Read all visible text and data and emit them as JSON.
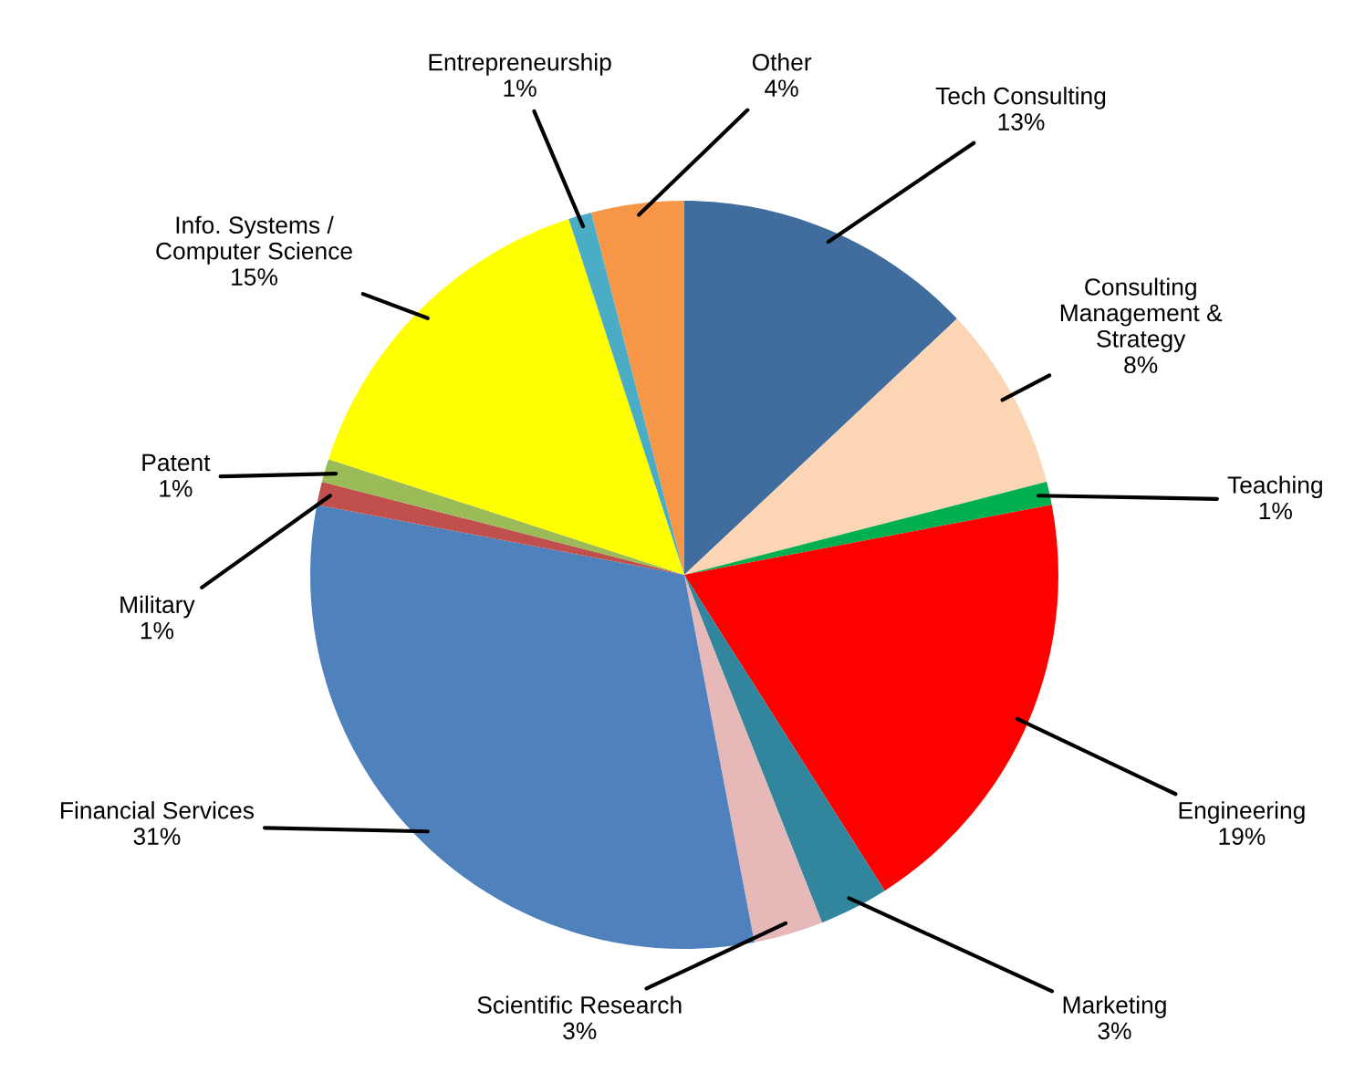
{
  "chart_data": {
    "type": "pie",
    "categories": [
      "Tech Consulting",
      "Consulting\nManagement &\nStrategy",
      "Teaching",
      "Engineering",
      "Marketing",
      "Scientific Research",
      "Financial Services",
      "Military",
      "Patent",
      "Info. Systems /\nComputer Science",
      "Entrepreneurship",
      "Other"
    ],
    "values": [
      13,
      8,
      1,
      19,
      3,
      3,
      31,
      1,
      1,
      15,
      1,
      4
    ],
    "value_labels": [
      "13%",
      "8%",
      "1%",
      "19%",
      "3%",
      "3%",
      "31%",
      "1%",
      "1%",
      "15%",
      "1%",
      "4%"
    ],
    "colors": [
      "#416c9e",
      "#fcd5b5",
      "#00b050",
      "#ff0000",
      "#31859c",
      "#e6b9b8",
      "#4f81bd",
      "#c0504d",
      "#9bbb59",
      "#ffff00",
      "#4bacc6",
      "#f79646"
    ],
    "legend": false
  }
}
